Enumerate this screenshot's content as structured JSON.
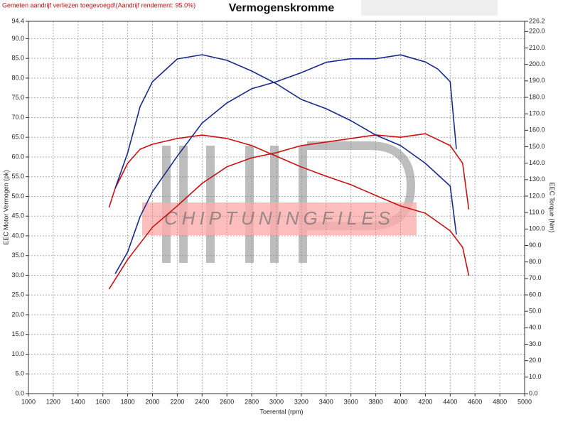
{
  "chart_data": {
    "type": "line",
    "title": "Vermogenskromme",
    "note": "Gemeten aandrijf verliezen toegevoegd!(Aandrijf rendement: 95.0%)",
    "watermark": "CHIPTUNINGFILES",
    "x_label": "Toerental (rpm)",
    "y_label": "EEC Motor Vermogen (pk)",
    "y2_label": "EEC Torque (Nm)",
    "grid": true,
    "xlim": [
      1000,
      5000
    ],
    "xticks": [
      1000,
      1200,
      1400,
      1600,
      1800,
      2000,
      2200,
      2400,
      2600,
      2800,
      3000,
      3200,
      3400,
      3600,
      3800,
      4000,
      4200,
      4400,
      4600,
      4800,
      5000
    ],
    "ylim": [
      0,
      94.4
    ],
    "yticks": [
      {
        "value": 0,
        "label": "0.0"
      },
      {
        "value": 5,
        "label": "5.0"
      },
      {
        "value": 10,
        "label": "10.0"
      },
      {
        "value": 15,
        "label": "15.0"
      },
      {
        "value": 20,
        "label": "20.0"
      },
      {
        "value": 25,
        "label": "25.0"
      },
      {
        "value": 30,
        "label": "30.0"
      },
      {
        "value": 35,
        "label": "35.0"
      },
      {
        "value": 40,
        "label": "40.0"
      },
      {
        "value": 45,
        "label": "45.0"
      },
      {
        "value": 50,
        "label": "50.0"
      },
      {
        "value": 55,
        "label": "55.0"
      },
      {
        "value": 60,
        "label": "60.0"
      },
      {
        "value": 65,
        "label": "65.0"
      },
      {
        "value": 70,
        "label": "70.0"
      },
      {
        "value": 75,
        "label": "75.0"
      },
      {
        "value": 80,
        "label": "80.0"
      },
      {
        "value": 85,
        "label": "85.0"
      },
      {
        "value": 90,
        "label": "90.0"
      },
      94.4
    ],
    "y2lim": [
      0,
      226.2
    ],
    "y2ticks": [
      {
        "value": 0,
        "label": "0.0"
      },
      {
        "value": 10,
        "label": "10.0"
      },
      {
        "value": 20,
        "label": "20.0"
      },
      {
        "value": 30,
        "label": "30.0"
      },
      {
        "value": 40,
        "label": "40.0"
      },
      {
        "value": 50,
        "label": "50.0"
      },
      {
        "value": 60,
        "label": "60.0"
      },
      {
        "value": 70,
        "label": "70.0"
      },
      {
        "value": 80,
        "label": "80.0"
      },
      {
        "value": 90,
        "label": "90.0"
      },
      {
        "value": 100,
        "label": "100.0"
      },
      {
        "value": 110,
        "label": "110.0"
      },
      {
        "value": 120,
        "label": "120.0"
      },
      {
        "value": 130,
        "label": "130.0"
      },
      {
        "value": 140,
        "label": "140.0"
      },
      {
        "value": 150,
        "label": "150.0"
      },
      {
        "value": 160,
        "label": "160.0"
      },
      {
        "value": 170,
        "label": "170.0"
      },
      {
        "value": 180,
        "label": "180.0"
      },
      {
        "value": 190,
        "label": "190.0"
      },
      {
        "value": 200,
        "label": "200.0"
      },
      {
        "value": 210,
        "label": "210.0"
      },
      {
        "value": 220,
        "label": "220.0"
      },
      226.2
    ],
    "series": [
      {
        "color": "#cc1111",
        "axis": "y2",
        "x": [
          1650,
          1700,
          1800,
          1900,
          2000,
          2200,
          2400,
          2600,
          2800,
          3000,
          3200,
          3400,
          3600,
          3800,
          4000,
          4200,
          4400,
          4500,
          4550
        ],
        "values": [
          113.1,
          124.8,
          139.9,
          148.5,
          151.5,
          155.0,
          157.1,
          155.0,
          150.7,
          144.2,
          137.7,
          132.1,
          126.9,
          120.4,
          114.0,
          109.6,
          98.9,
          88.9,
          71.7
        ]
      },
      {
        "color": "#cc1111",
        "x": [
          1650,
          1800,
          2000,
          2200,
          2400,
          2600,
          2800,
          3000,
          3200,
          3400,
          3600,
          3800,
          4000,
          4200,
          4400,
          4500,
          4550
        ],
        "values": [
          26.5,
          34.0,
          42.2,
          47.6,
          53.3,
          57.5,
          59.8,
          61.1,
          62.9,
          63.8,
          64.7,
          65.6,
          65.0,
          65.9,
          62.9,
          58.4,
          46.7
        ]
      },
      {
        "color": "#1a2a8c",
        "axis": "y2",
        "x": [
          1700,
          1800,
          1900,
          2000,
          2200,
          2400,
          2600,
          2800,
          3000,
          3200,
          3400,
          3600,
          3800,
          4000,
          4200,
          4400,
          4450
        ],
        "values": [
          124.8,
          146.3,
          174.4,
          189.5,
          203.3,
          205.9,
          202.5,
          196.0,
          188.2,
          178.7,
          173.1,
          165.8,
          157.1,
          150.7,
          139.9,
          126.1,
          96.7
        ]
      },
      {
        "color": "#1a2a8c",
        "x": [
          1700,
          1800,
          1900,
          2000,
          2200,
          2400,
          2600,
          2800,
          3000,
          3200,
          3400,
          3600,
          3800,
          4000,
          4200,
          4300,
          4400,
          4450
        ],
        "values": [
          30.4,
          35.9,
          44.9,
          51.2,
          60.2,
          68.6,
          73.7,
          77.3,
          79.1,
          81.4,
          84.0,
          84.9,
          84.9,
          85.9,
          84.1,
          82.3,
          79.1,
          62.0
        ]
      }
    ]
  }
}
